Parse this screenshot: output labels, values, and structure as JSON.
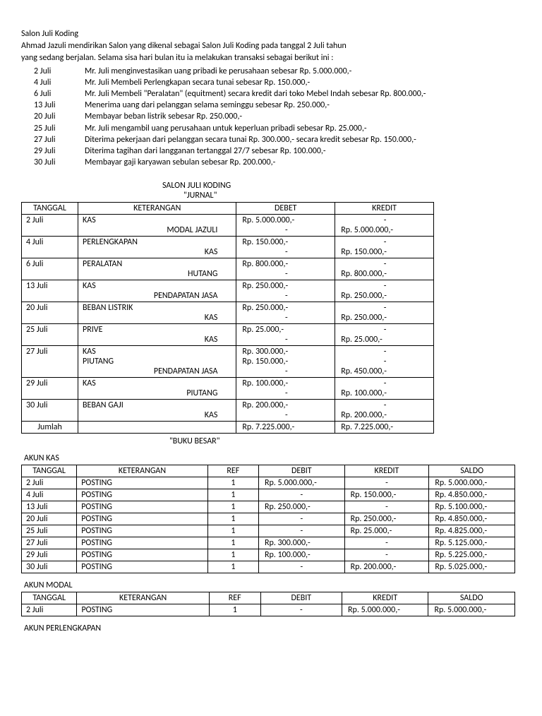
{
  "header": {
    "title": "Salon Juli Koding",
    "intro1": "Ahmad Jazuli mendirikan Salon yang dikenal sebagai Salon Juli Koding pada tanggal 2 Juli tahun",
    "intro2": " yang sedang berjalan. Selama sisa hari bulan itu ia melakukan transaksi sebagai berikut ini :"
  },
  "transactions": [
    {
      "date": "2 Juli",
      "desc": "Mr. Juli menginvestasikan uang pribadi ke perusahaan sebesar Rp. 5.000.000,-"
    },
    {
      "date": "4 Juli",
      "desc": "Mr. Juli Membeli Perlengkapan secara tunai sebesar Rp. 150.000,-"
    },
    {
      "date": "6 Juli",
      "desc": "Mr. Juli Membeli \"Peralatan\" (equitment) secara kredit dari toko Mebel Indah sebesar Rp. 800.000,-"
    },
    {
      "date": "13 Juli",
      "desc": "Menerima uang dari pelanggan selama seminggu sebesar Rp. 250.000,-"
    },
    {
      "date": "20 Juli",
      "desc": "Membayar beban listrik sebesar Rp. 250.000,-"
    },
    {
      "date": "25 Juli",
      "desc": "Mr. Juli mengambil uang perusahaan untuk keperluan pribadi sebesar Rp. 25.000,-"
    },
    {
      "date": "27 Juli",
      "desc": "Diterima pekerjaan dari pelanggan secara tunai Rp. 300.000,-  secara kredit sebesar Rp. 150.000,-"
    },
    {
      "date": "29 Juli",
      "desc": "Diterima tagihan dari langganan tertanggal 27/7 sebesar Rp. 100.000,-"
    },
    {
      "date": "30 Juli",
      "desc": "Membayar gaji karyawan sebulan sebesar Rp. 200.000,-"
    }
  ],
  "jurnal": {
    "company": "SALON JULI KODING",
    "label": "\"JURNAL\"",
    "headers": {
      "tgl": "TANGGAL",
      "ket": "KETERANGAN",
      "deb": "DEBET",
      "kre": "KREDIT"
    },
    "rows": [
      {
        "tgl": "2 Juli",
        "k1": "KAS",
        "k2": "MODAL JAZULI",
        "d1": "Rp. 5.000.000,-",
        "d2": "-",
        "c1": "-",
        "c2": "Rp. 5.000.000,-"
      },
      {
        "tgl": "4 Juli",
        "k1": "PERLENGKAPAN",
        "k2": "KAS",
        "d1": "Rp. 150.000,-",
        "d2": "-",
        "c1": "-",
        "c2": "Rp. 150.000,-"
      },
      {
        "tgl": "6 Juli",
        "k1": "PERALATAN",
        "k2": "HUTANG",
        "d1": "Rp. 800.000,-",
        "d2": "-",
        "c1": "-",
        "c2": "Rp. 800.000,-"
      },
      {
        "tgl": "13 Juli",
        "k1": "KAS",
        "k2": "PENDAPATAN JASA",
        "d1": "Rp. 250.000,-",
        "d2": "-",
        "c1": "-",
        "c2": "Rp. 250.000,-"
      },
      {
        "tgl": "20 Juli",
        "k1": "BEBAN LISTRIK",
        "k2": "KAS",
        "d1": "Rp. 250.000,-",
        "d2": "-",
        "c1": "-",
        "c2": "Rp. 250.000,-"
      },
      {
        "tgl": "25 Juli",
        "k1": "PRIVE",
        "k2": "KAS",
        "d1": "Rp. 25.000,-",
        "d2": "-",
        "c1": "-",
        "c2": "Rp. 25.000,-"
      },
      {
        "tgl": "27 Juli",
        "k1": "KAS",
        "k1b": "PIUTANG",
        "k2": "PENDAPATAN JASA",
        "d1": "Rp. 300.000,-",
        "d1b": "Rp. 150.000,-",
        "d2": "-",
        "c1": "-",
        "c1b": "-",
        "c2": "Rp. 450.000,-"
      },
      {
        "tgl": "29 Juli",
        "k1": "KAS",
        "k2": "PIUTANG",
        "d1": "Rp. 100.000,-",
        "d2": "-",
        "c1": "-",
        "c2": "Rp. 100.000,-"
      },
      {
        "tgl": "30 Juli",
        "k1": "BEBAN GAJI",
        "k2": "KAS",
        "d1": "Rp. 200.000,-",
        "d2": "-",
        "c1": "-",
        "c2": "Rp. 200.000,-"
      }
    ],
    "total": {
      "label": "Jumlah",
      "deb": "Rp. 7.225.000,-",
      "kre": "Rp. 7.225.000,-"
    }
  },
  "bukubesar": {
    "label": "\"BUKU BESAR\"",
    "headers": {
      "tgl": "TANGGAL",
      "ket": "KETERANGAN",
      "ref": "REF",
      "deb": "DEBIT",
      "kre": "KREDIT",
      "sal": "SALDO"
    }
  },
  "akun_kas": {
    "label": "AKUN KAS",
    "rows": [
      {
        "tgl": "2 Juli",
        "ket": "POSTING",
        "ref": "1",
        "d": "Rp. 5.000.000,-",
        "k": "-",
        "s": "Rp. 5.000.000,-"
      },
      {
        "tgl": "4 Juli",
        "ket": "POSTING",
        "ref": "1",
        "d": "-",
        "k": "Rp. 150.000,-",
        "s": "Rp. 4.850.000,-"
      },
      {
        "tgl": "13 Juli",
        "ket": "POSTING",
        "ref": "1",
        "d": "Rp. 250.000,-",
        "k": "-",
        "s": "Rp. 5.100.000,-"
      },
      {
        "tgl": "20 Juli",
        "ket": "POSTING",
        "ref": "1",
        "d": "-",
        "k": "Rp. 250.000,-",
        "s": "Rp. 4.850.000,-"
      },
      {
        "tgl": "25 Juli",
        "ket": "POSTING",
        "ref": "1",
        "d": "-",
        "k": "Rp. 25.000,-",
        "s": "Rp. 4.825.000,-"
      },
      {
        "tgl": "27 Juli",
        "ket": "POSTING",
        "ref": "1",
        "d": "Rp. 300.000,-",
        "k": "-",
        "s": "Rp. 5.125.000,-"
      },
      {
        "tgl": "29 Juli",
        "ket": "POSTING",
        "ref": "1",
        "d": "Rp. 100.000,-",
        "k": "-",
        "s": "Rp. 5.225.000,-"
      },
      {
        "tgl": "30 Juli",
        "ket": "POSTING",
        "ref": "1",
        "d": "-",
        "k": "Rp. 200.000,-",
        "s": "Rp. 5.025.000,-"
      }
    ]
  },
  "akun_modal": {
    "label": "AKUN MODAL",
    "rows": [
      {
        "tgl": "2 Juli",
        "ket": "POSTING",
        "ref": "1",
        "d": "-",
        "k": "Rp. 5.000.000,-",
        "s": "Rp. 5.000.000,-"
      }
    ]
  },
  "akun_perlengkapan": {
    "label": "AKUN PERLENGKAPAN"
  }
}
